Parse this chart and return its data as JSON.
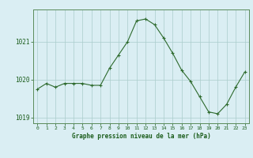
{
  "x": [
    0,
    1,
    2,
    3,
    4,
    5,
    6,
    7,
    8,
    9,
    10,
    11,
    12,
    13,
    14,
    15,
    16,
    17,
    18,
    19,
    20,
    21,
    22,
    23
  ],
  "y": [
    1019.75,
    1019.9,
    1019.8,
    1019.9,
    1019.9,
    1019.9,
    1019.85,
    1019.85,
    1020.3,
    1020.65,
    1021.0,
    1021.55,
    1021.6,
    1021.45,
    1021.1,
    1020.7,
    1020.25,
    1019.95,
    1019.55,
    1019.15,
    1019.1,
    1019.35,
    1019.8,
    1020.2
  ],
  "line_color": "#2d6a2d",
  "marker": "+",
  "marker_color": "#2d6a2d",
  "bg_color": "#daeef3",
  "grid_color": "#aacccc",
  "xlabel": "Graphe pression niveau de la mer (hPa)",
  "xlabel_color": "#1a5c1a",
  "tick_color": "#1a5c1a",
  "axis_color": "#5a8a5a",
  "ylim": [
    1018.85,
    1021.85
  ],
  "yticks": [
    1019,
    1020,
    1021
  ],
  "xlim": [
    -0.5,
    23.5
  ]
}
